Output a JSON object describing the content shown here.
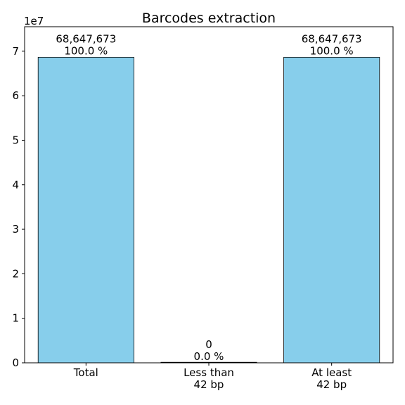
{
  "chart_data": {
    "type": "bar",
    "title": "Barcodes extraction",
    "xlabel": "",
    "ylabel": "",
    "y_scale_label": "1e7",
    "ylim": [
      0,
      7.55
    ],
    "yticks": [
      0,
      1,
      2,
      3,
      4,
      5,
      6,
      7
    ],
    "categories": [
      [
        "Total"
      ],
      [
        "Less than",
        "42 bp"
      ],
      [
        "At least",
        "42 bp"
      ]
    ],
    "values": [
      68647673,
      0,
      68647673
    ],
    "value_labels": [
      "68,647,673",
      "0",
      "68,647,673"
    ],
    "percent_labels": [
      "100.0 %",
      "0.0 %",
      "100.0 %"
    ],
    "bar_color": "#87ceeb",
    "edge_color": "#000000",
    "grid": false
  }
}
